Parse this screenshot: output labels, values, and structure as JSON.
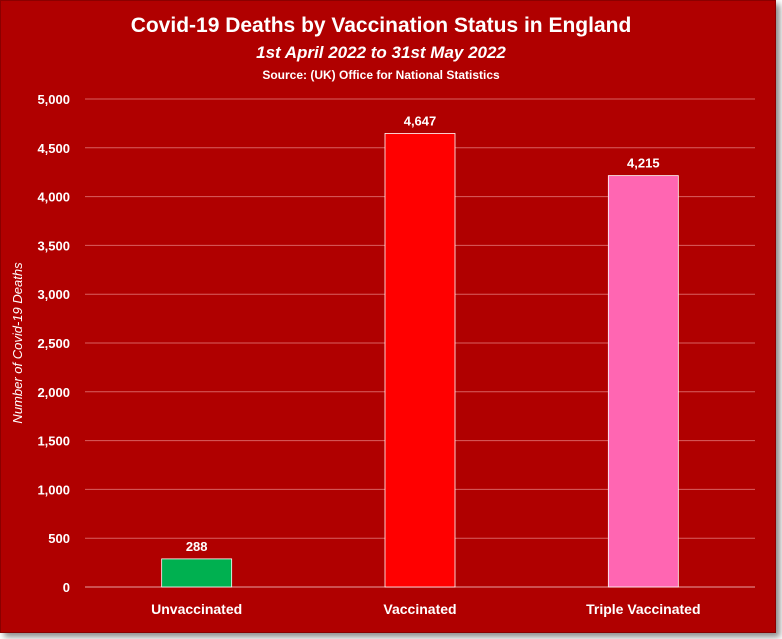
{
  "chart_data": {
    "type": "bar",
    "title": "Covid-19 Deaths by Vaccination Status in England",
    "subtitle": "1st April 2022 to 31st May 2022",
    "source": "Source: (UK) Office for National Statistics",
    "ylabel": "Number of Covid-19 Deaths",
    "xlabel": "",
    "ylim": [
      0,
      5000
    ],
    "grid": true,
    "yticks": [
      0,
      500,
      1000,
      1500,
      2000,
      2500,
      3000,
      3500,
      4000,
      4500,
      5000
    ],
    "ytick_labels": [
      "0",
      "500",
      "1,000",
      "1,500",
      "2,000",
      "2,500",
      "3,000",
      "3,500",
      "4,000",
      "4,500",
      "5,000"
    ],
    "categories": [
      "Unvaccinated",
      "Vaccinated",
      "Triple Vaccinated"
    ],
    "values": [
      288,
      4647,
      4215
    ],
    "value_labels": [
      "288",
      "4,647",
      "4,215"
    ],
    "bar_colors": [
      "#00b050",
      "#ff0000",
      "#ff66b2"
    ],
    "background_color": "#b00000"
  }
}
